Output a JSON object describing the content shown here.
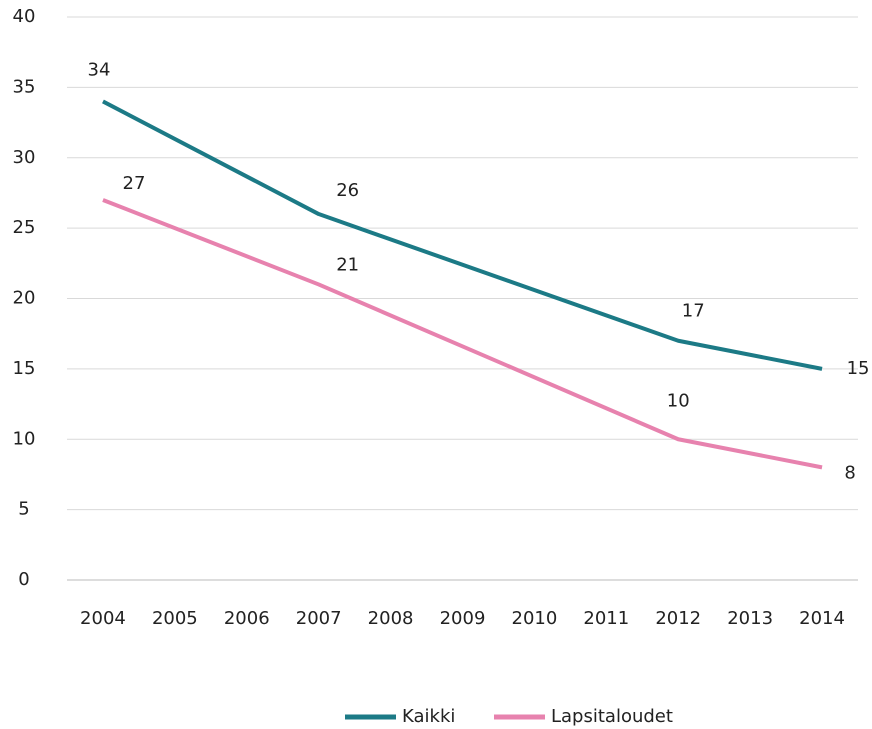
{
  "chart_data": {
    "type": "line",
    "x": [
      2004,
      2007,
      2012,
      2014
    ],
    "xlim": [
      2003.5,
      2014.5
    ],
    "xticks": [
      2004,
      2005,
      2006,
      2007,
      2008,
      2009,
      2010,
      2011,
      2012,
      2013,
      2014
    ],
    "series": [
      {
        "name": "Kaikki",
        "color": "#1c7a86",
        "values": [
          34,
          26,
          17,
          15
        ]
      },
      {
        "name": "Lapsitaloudet",
        "color": "#e782ae",
        "values": [
          27,
          21,
          10,
          8
        ]
      }
    ],
    "ylim": [
      0,
      40
    ],
    "yticks": [
      0,
      5,
      10,
      15,
      20,
      25,
      30,
      35,
      40
    ],
    "grid": true,
    "legend": "bottom"
  }
}
